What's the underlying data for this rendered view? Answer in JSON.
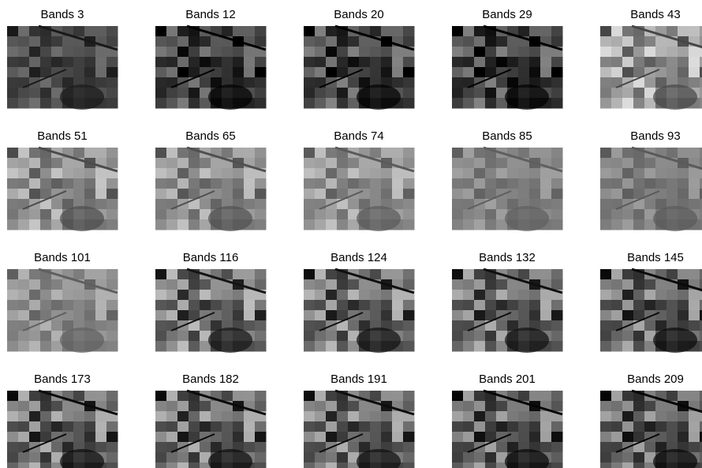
{
  "panels": [
    {
      "title": "Bands 3"
    },
    {
      "title": "Bands 12"
    },
    {
      "title": "Bands 20"
    },
    {
      "title": "Bands 29"
    },
    {
      "title": "Bands 43"
    },
    {
      "title": "Bands 51"
    },
    {
      "title": "Bands 65"
    },
    {
      "title": "Bands 74"
    },
    {
      "title": "Bands 85"
    },
    {
      "title": "Bands 93"
    },
    {
      "title": "Bands 101"
    },
    {
      "title": "Bands 116"
    },
    {
      "title": "Bands 124"
    },
    {
      "title": "Bands 132"
    },
    {
      "title": "Bands 145"
    },
    {
      "title": "Bands 173"
    },
    {
      "title": "Bands 182"
    },
    {
      "title": "Bands 191"
    },
    {
      "title": "Bands 201"
    },
    {
      "title": "Bands 209"
    }
  ]
}
